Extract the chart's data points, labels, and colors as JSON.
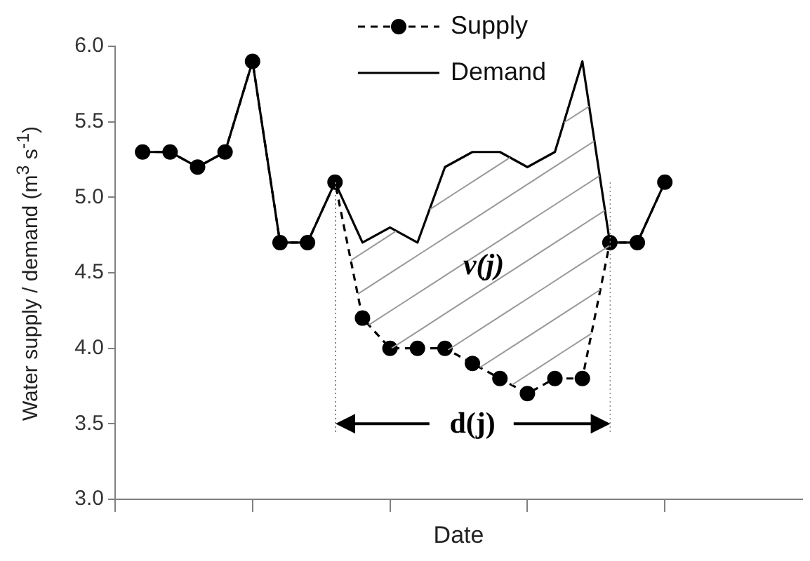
{
  "chart_data": {
    "type": "line",
    "xlabel": "Date",
    "ylabel": "Water supply / demand  (m$^{3}$ s$^{-1}$)",
    "categories": [
      null,
      null,
      null,
      null,
      null,
      null,
      null,
      null,
      null,
      null,
      null,
      null,
      null,
      null,
      null,
      null,
      null,
      null,
      null,
      null
    ],
    "series": [
      {
        "name": "Supply",
        "color": "#000000",
        "line_style": "dashed",
        "marker": "circle",
        "values": [
          5.3,
          5.3,
          5.2,
          5.3,
          5.9,
          4.7,
          4.7,
          5.1,
          4.2,
          4.0,
          4.0,
          4.0,
          3.9,
          3.8,
          3.7,
          3.8,
          3.8,
          4.7,
          4.7,
          5.1
        ]
      },
      {
        "name": "Demand",
        "color": "#000000",
        "line_style": "solid",
        "marker": "none",
        "values": [
          5.3,
          5.3,
          5.2,
          5.3,
          5.9,
          4.7,
          4.7,
          5.1,
          4.7,
          4.8,
          4.7,
          5.2,
          5.3,
          5.3,
          5.2,
          5.3,
          5.9,
          4.7,
          4.7,
          5.1
        ]
      }
    ],
    "ylim": [
      3,
      6
    ],
    "yticks": [
      {
        "value": 3,
        "label": "3.0"
      },
      {
        "value": 3.5,
        "label": "3.5"
      },
      {
        "value": 4,
        "label": "4.0"
      },
      {
        "value": 4.5,
        "label": "4.5"
      },
      {
        "value": 5,
        "label": "5.0"
      },
      {
        "value": 5.5,
        "label": "5.5"
      },
      {
        "value": 6,
        "label": "6.0"
      }
    ],
    "tick_labels": "y",
    "grid": false,
    "legend": "top",
    "annotations": [
      "v(j)",
      "d(j)"
    ]
  }
}
